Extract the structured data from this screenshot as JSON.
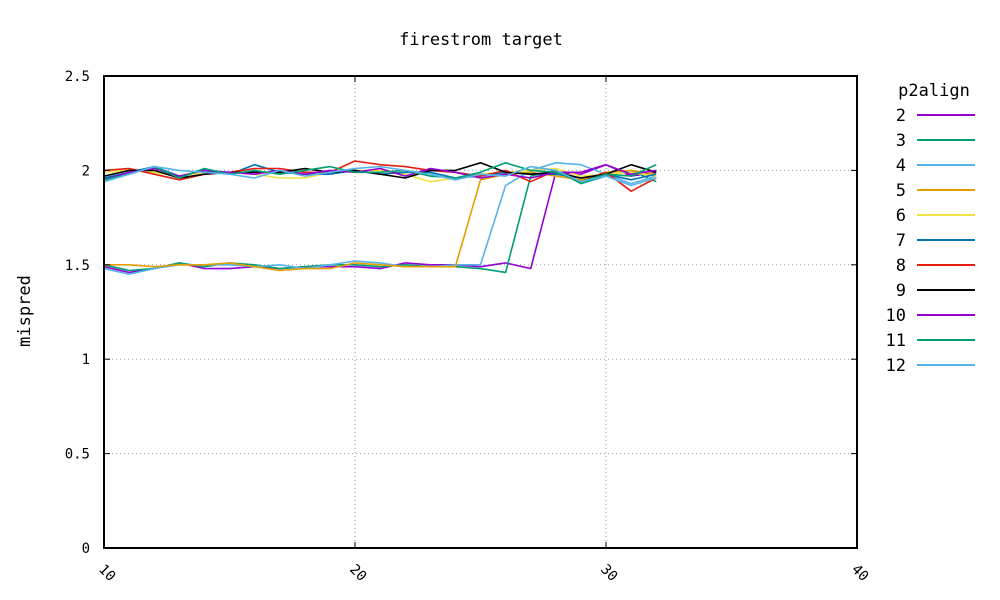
{
  "chart_data": {
    "type": "line",
    "title": "firestrom target",
    "xlabel": "",
    "ylabel": "mispred",
    "xlim": [
      10,
      40
    ],
    "ylim": [
      0,
      2.5
    ],
    "xticks": [
      "10",
      "20",
      "30",
      "40"
    ],
    "yticks": [
      "0",
      "0.5",
      "1",
      "1.5",
      "2",
      "2.5"
    ],
    "grid": true,
    "legend_title": "p2align",
    "legend_position": "right",
    "x": [
      10,
      11,
      12,
      13,
      14,
      15,
      16,
      17,
      18,
      19,
      20,
      21,
      22,
      23,
      24,
      25,
      26,
      27,
      28,
      29,
      30,
      31,
      32
    ],
    "series": [
      {
        "name": "2",
        "color": "#9400d3",
        "values": [
          1.49,
          1.46,
          1.48,
          1.51,
          1.48,
          1.48,
          1.49,
          1.48,
          1.49,
          1.49,
          1.49,
          1.48,
          1.51,
          1.5,
          1.5,
          1.49,
          1.51,
          1.48,
          1.99,
          1.98,
          2.03,
          1.97,
          1.99
        ]
      },
      {
        "name": "3",
        "color": "#009e73",
        "values": [
          1.5,
          1.47,
          1.48,
          1.51,
          1.49,
          1.51,
          1.5,
          1.48,
          1.49,
          1.5,
          1.5,
          1.49,
          1.5,
          1.49,
          1.49,
          1.48,
          1.46,
          1.97,
          2.0,
          1.93,
          1.97,
          2.0,
          1.94
        ]
      },
      {
        "name": "4",
        "color": "#56b4e9",
        "values": [
          1.48,
          1.45,
          1.48,
          1.5,
          1.5,
          1.5,
          1.49,
          1.5,
          1.48,
          1.5,
          1.52,
          1.51,
          1.49,
          1.49,
          1.5,
          1.5,
          1.92,
          2.0,
          2.04,
          2.03,
          1.98,
          1.93,
          1.97
        ]
      },
      {
        "name": "5",
        "color": "#e69f00",
        "values": [
          1.5,
          1.5,
          1.49,
          1.5,
          1.5,
          1.51,
          1.49,
          1.47,
          1.48,
          1.48,
          1.51,
          1.5,
          1.49,
          1.49,
          1.49,
          1.95,
          1.98,
          1.99,
          1.97,
          1.95,
          1.99,
          2.0,
          1.98
        ]
      },
      {
        "name": "6",
        "color": "#f0e442",
        "values": [
          1.99,
          2.0,
          1.99,
          1.97,
          1.99,
          1.99,
          1.98,
          1.96,
          1.96,
          1.99,
          2.0,
          2.0,
          1.98,
          1.94,
          1.96,
          1.98,
          1.99,
          2.0,
          2.01,
          1.97,
          1.98,
          1.99,
          1.97
        ]
      },
      {
        "name": "7",
        "color": "#0072b2",
        "values": [
          1.96,
          1.99,
          2.02,
          1.97,
          2.0,
          1.98,
          2.03,
          1.99,
          1.98,
          1.98,
          2.0,
          1.98,
          1.99,
          1.99,
          1.96,
          1.97,
          1.99,
          1.98,
          1.98,
          1.96,
          1.98,
          1.95,
          1.98
        ]
      },
      {
        "name": "8",
        "color": "#e51e10",
        "values": [
          2.0,
          2.01,
          1.98,
          1.95,
          1.98,
          1.99,
          2.01,
          2.01,
          1.99,
          1.99,
          2.05,
          2.03,
          2.02,
          2.0,
          1.99,
          1.97,
          2.0,
          1.94,
          2.0,
          1.94,
          1.99,
          1.89,
          1.96
        ]
      },
      {
        "name": "9",
        "color": "#000000",
        "values": [
          1.97,
          2.0,
          2.0,
          1.96,
          1.98,
          1.99,
          1.99,
          1.99,
          2.01,
          1.99,
          2.0,
          1.98,
          1.96,
          2.0,
          2.0,
          2.04,
          1.99,
          1.98,
          1.99,
          1.96,
          1.98,
          2.03,
          1.99
        ]
      },
      {
        "name": "10",
        "color": "#9400d3",
        "values": [
          1.95,
          1.99,
          2.01,
          1.97,
          2.0,
          1.99,
          1.98,
          2.0,
          1.98,
          2.0,
          1.99,
          2.01,
          1.97,
          2.01,
          1.99,
          1.96,
          1.98,
          1.96,
          1.99,
          1.99,
          2.03,
          1.98,
          2.0
        ]
      },
      {
        "name": "11",
        "color": "#009e73",
        "values": [
          1.95,
          1.98,
          2.02,
          1.96,
          2.01,
          1.98,
          2.0,
          1.98,
          2.0,
          2.02,
          1.99,
          1.99,
          2.0,
          1.97,
          1.96,
          1.99,
          2.04,
          2.0,
          1.99,
          1.94,
          1.98,
          1.97,
          2.03
        ]
      },
      {
        "name": "12",
        "color": "#56b4e9",
        "values": [
          1.94,
          1.98,
          2.02,
          2.0,
          1.99,
          1.98,
          1.96,
          2.0,
          1.97,
          1.99,
          2.01,
          2.02,
          2.0,
          1.98,
          1.95,
          1.98,
          1.97,
          2.02,
          2.0,
          1.94,
          1.97,
          1.92,
          1.96
        ]
      }
    ]
  }
}
